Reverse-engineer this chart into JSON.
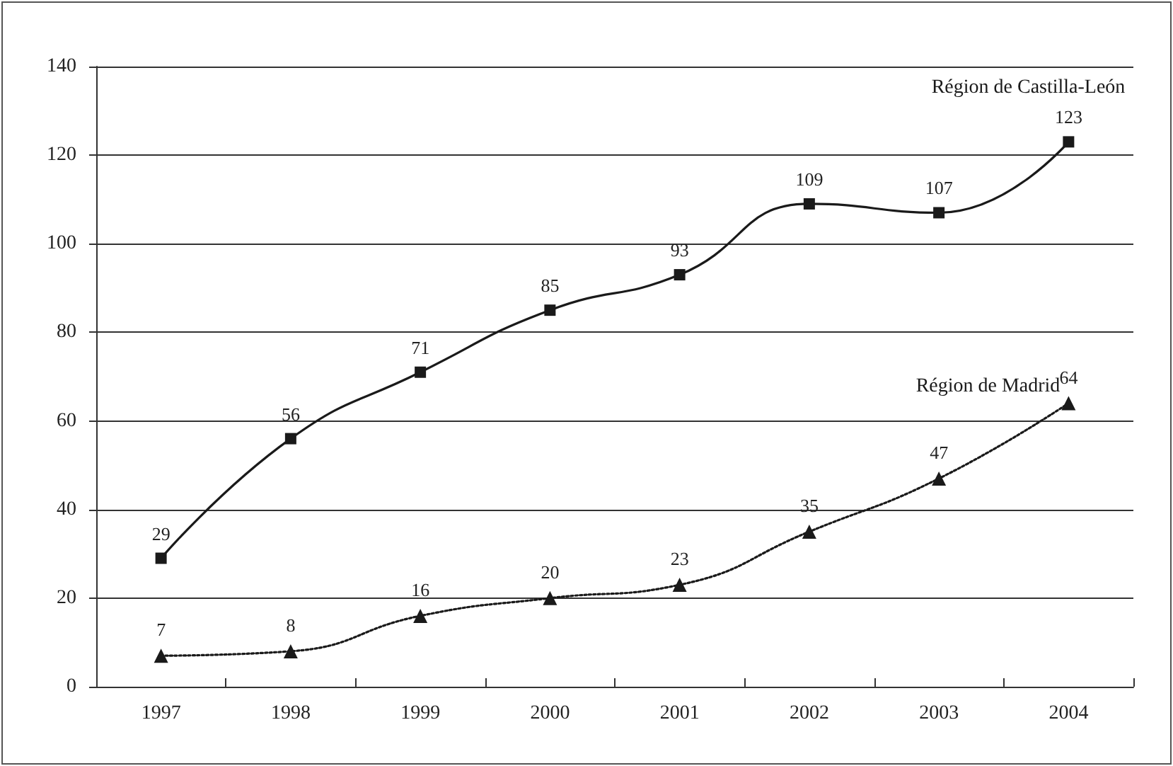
{
  "chart_data": {
    "type": "line",
    "categories": [
      "1997",
      "1998",
      "1999",
      "2000",
      "2001",
      "2002",
      "2003",
      "2004"
    ],
    "series": [
      {
        "name": "Région de Castilla-León",
        "color": "#1a1a1a",
        "marker": "square",
        "line_style": "solid",
        "values": [
          29,
          56,
          71,
          85,
          93,
          109,
          107,
          123
        ]
      },
      {
        "name": "Région de Madrid",
        "color": "#1a1a1a",
        "marker": "triangle",
        "line_style": "dotted",
        "values": [
          7,
          8,
          16,
          20,
          23,
          35,
          47,
          64
        ]
      }
    ],
    "ylim": [
      0,
      140
    ],
    "yticks": [
      0,
      20,
      40,
      60,
      80,
      100,
      120,
      140
    ],
    "grid": "y",
    "legend": false,
    "data_labels": true
  }
}
